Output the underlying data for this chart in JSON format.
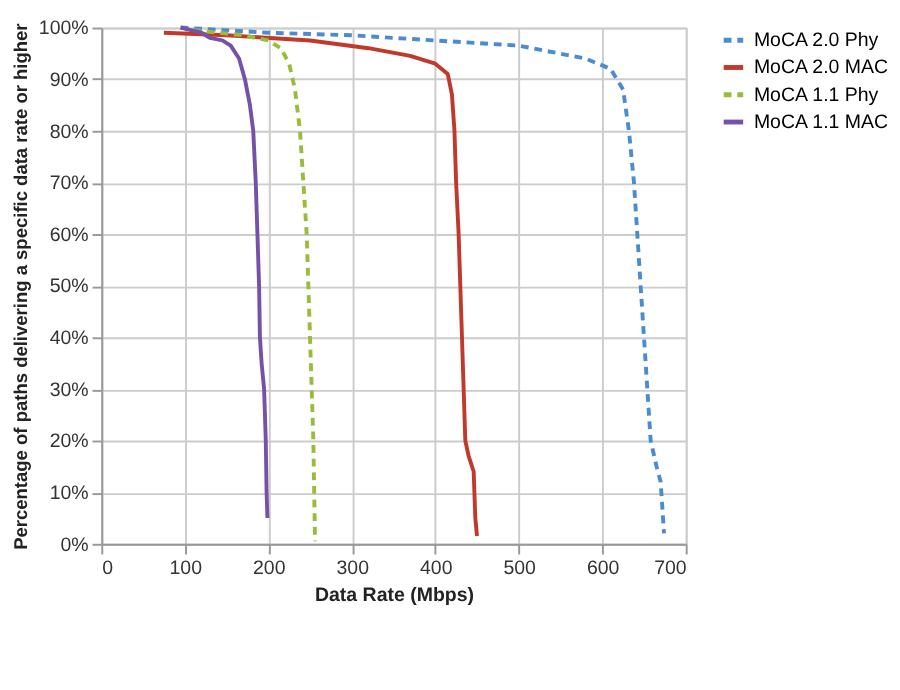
{
  "chart_data": {
    "type": "line",
    "xlabel": "Data Rate (Mbps)",
    "ylabel": "Percentage of paths delivering a specific data rate or higher",
    "xlim": [
      0,
      700
    ],
    "xticks": [
      0,
      100,
      200,
      300,
      400,
      500,
      600,
      700
    ],
    "ylim": [
      0,
      100
    ],
    "yticks": [
      {
        "value": 0,
        "label": "0%"
      },
      {
        "value": 10,
        "label": "10%"
      },
      {
        "value": 20,
        "label": "20%"
      },
      {
        "value": 30,
        "label": "30%"
      },
      {
        "value": 40,
        "label": "40%"
      },
      {
        "value": 50,
        "label": "50%"
      },
      {
        "value": 60,
        "label": "60%"
      },
      {
        "value": 70,
        "label": "70%"
      },
      {
        "value": 80,
        "label": "80%"
      },
      {
        "value": 90,
        "label": "90%"
      },
      {
        "value": 100,
        "label": "100%"
      }
    ],
    "grid": true,
    "legend": "right",
    "marker": "none",
    "series": [
      {
        "name": "MoCA 2.0 Phy",
        "color": "#4a8cd0",
        "line_style": "dashed",
        "x": [
          95,
          200,
          300,
          400,
          500,
          580,
          610,
          625,
          632,
          638,
          642,
          646,
          650,
          654,
          658,
          665,
          670,
          674
        ],
        "values": [
          100,
          99,
          98.5,
          97.5,
          96.5,
          94,
          92,
          88,
          80,
          70,
          60,
          50,
          40,
          30,
          20,
          15,
          12,
          2
        ]
      },
      {
        "name": "MoCA 2.0 MAC",
        "color": "#c0392b",
        "line_style": "solid",
        "x": [
          75,
          150,
          250,
          320,
          370,
          400,
          415,
          420,
          423,
          425,
          428,
          430,
          432,
          434,
          436,
          440,
          446,
          448,
          450
        ],
        "values": [
          99,
          98.5,
          97.5,
          96,
          94.5,
          93,
          91,
          87,
          80,
          70,
          60,
          50,
          40,
          30,
          20,
          17,
          14,
          5,
          1.5
        ]
      },
      {
        "name": "MoCA 1.1 Phy",
        "color": "#9bbb3b",
        "line_style": "dashed",
        "x": [
          110,
          170,
          200,
          215,
          225,
          232,
          238,
          242,
          246,
          248,
          250,
          252,
          254,
          255,
          256
        ],
        "values": [
          99.5,
          98.5,
          97.5,
          96,
          93,
          88,
          80,
          70,
          60,
          50,
          40,
          30,
          20,
          10,
          0.5
        ]
      },
      {
        "name": "MoCA 1.1 MAC",
        "color": "#7552a8",
        "line_style": "solid",
        "x": [
          95,
          120,
          130,
          145,
          155,
          165,
          172,
          178,
          182,
          185,
          187,
          189,
          190,
          192,
          195,
          197,
          198,
          199
        ],
        "values": [
          100,
          99,
          98,
          97.5,
          96.5,
          94,
          90,
          85,
          80,
          70,
          60,
          50,
          40,
          35,
          30,
          20,
          10,
          5
        ]
      }
    ]
  }
}
